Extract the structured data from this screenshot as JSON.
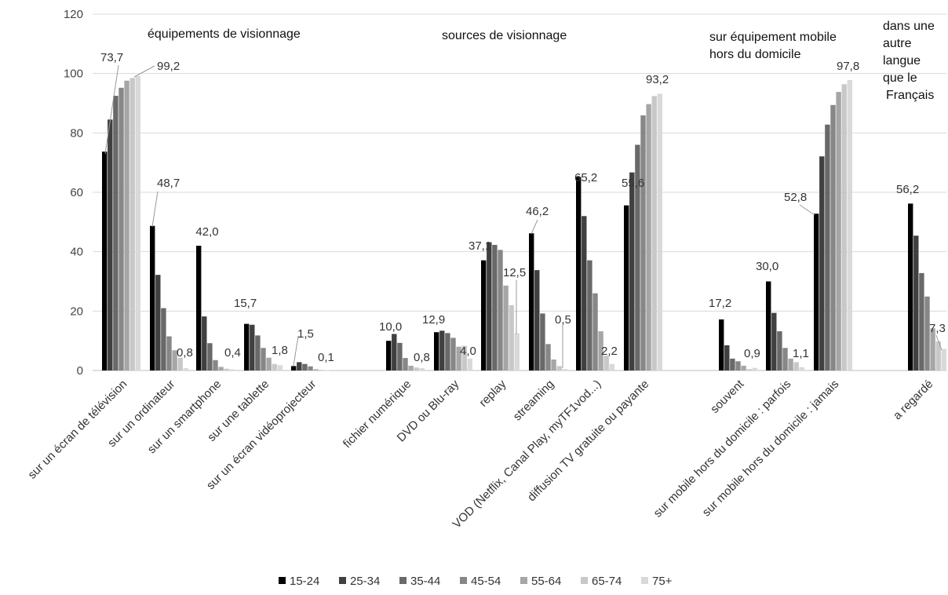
{
  "colors": {
    "series": [
      "#000000",
      "#404040",
      "#696969",
      "#878787",
      "#a6a6a6",
      "#c8c8c8",
      "#d9d9d9"
    ],
    "grid": "#d9d9d9",
    "axis": "#bfbfbf",
    "leader": "#999999"
  },
  "chart_data": {
    "type": "bar",
    "ylim": [
      0,
      120
    ],
    "yticks": [
      "0",
      "20",
      "40",
      "60",
      "80",
      "100",
      "120"
    ],
    "grid": true,
    "legend_position": "bottom",
    "categories": [
      "sur un écran de télévision",
      "sur un ordinateur",
      "sur un smartphone",
      "sur une tablette",
      "sur un écran vidéoprojecteur",
      "fichier numérique",
      "DVD ou Blu-ray",
      "replay",
      "streaming",
      "VOD (Netflix, Canal Play, myTF1vod...)",
      "diffusion TV gratuite ou payante",
      "souvent",
      "sur mobile hors du domicile : parfois",
      "sur mobile hors du domicile : jamais",
      "a regardé"
    ],
    "series": [
      {
        "name": "15-24",
        "values": [
          73.7,
          48.7,
          42.0,
          15.7,
          1.5,
          10.0,
          12.9,
          37.1,
          46.2,
          65.2,
          55.6,
          17.2,
          30.0,
          52.8,
          56.2
        ]
      },
      {
        "name": "25-34",
        "values": [
          84.5,
          32.2,
          18.2,
          15.4,
          2.8,
          12.3,
          13.4,
          43.2,
          33.8,
          52.0,
          66.7,
          8.5,
          19.4,
          72.1,
          45.4
        ]
      },
      {
        "name": "35-44",
        "values": [
          92.5,
          21.0,
          9.2,
          11.8,
          2.2,
          9.3,
          12.6,
          42.3,
          19.2,
          37.1,
          76.0,
          4.0,
          13.2,
          82.8,
          32.8
        ]
      },
      {
        "name": "45-54",
        "values": [
          95.2,
          11.5,
          3.5,
          7.6,
          1.4,
          4.2,
          11.0,
          40.6,
          8.9,
          26.0,
          85.9,
          3.1,
          7.6,
          89.4,
          24.9
        ]
      },
      {
        "name": "55-64",
        "values": [
          97.6,
          6.8,
          1.2,
          4.3,
          0.4,
          1.6,
          8.0,
          28.6,
          3.7,
          13.2,
          89.7,
          1.6,
          4.0,
          93.8,
          14.2
        ]
      },
      {
        "name": "65-74",
        "values": [
          98.5,
          4.3,
          0.6,
          2.2,
          0.2,
          1.0,
          8.3,
          22.0,
          1.5,
          5.0,
          92.4,
          0.5,
          2.8,
          96.4,
          9.8
        ]
      },
      {
        "name": "75+",
        "values": [
          99.2,
          0.8,
          0.4,
          1.8,
          0.1,
          0.8,
          4.0,
          12.5,
          0.5,
          2.2,
          93.2,
          0.9,
          1.1,
          97.8,
          7.3
        ]
      }
    ],
    "group_titles": [
      {
        "lines": [
          "équipements de visionnage"
        ]
      },
      {
        "lines": [
          "sources de visionnage"
        ]
      },
      {
        "lines": [
          "sur équipement mobile",
          "hors du domicile"
        ]
      },
      {
        "lines": [
          "dans une",
          "autre",
          "langue",
          "que le",
          "Français"
        ]
      }
    ],
    "data_labels": [
      {
        "cat": 0,
        "s": 0,
        "text": "73,7"
      },
      {
        "cat": 0,
        "s": 6,
        "text": "99,2"
      },
      {
        "cat": 1,
        "s": 0,
        "text": "48,7"
      },
      {
        "cat": 1,
        "s": 6,
        "text": "0,8"
      },
      {
        "cat": 2,
        "s": 0,
        "text": "42,0"
      },
      {
        "cat": 2,
        "s": 6,
        "text": "0,4"
      },
      {
        "cat": 3,
        "s": 0,
        "text": "15,7"
      },
      {
        "cat": 3,
        "s": 6,
        "text": "1,8"
      },
      {
        "cat": 4,
        "s": 0,
        "text": "1,5"
      },
      {
        "cat": 4,
        "s": 6,
        "text": "0,1"
      },
      {
        "cat": 5,
        "s": 0,
        "text": "10,0"
      },
      {
        "cat": 5,
        "s": 6,
        "text": "0,8"
      },
      {
        "cat": 6,
        "s": 0,
        "text": "12,9"
      },
      {
        "cat": 6,
        "s": 6,
        "text": "4,0"
      },
      {
        "cat": 7,
        "s": 0,
        "text": "37,1"
      },
      {
        "cat": 7,
        "s": 6,
        "text": "12,5"
      },
      {
        "cat": 8,
        "s": 0,
        "text": "46,2"
      },
      {
        "cat": 8,
        "s": 6,
        "text": "0,5"
      },
      {
        "cat": 9,
        "s": 0,
        "text": "65,2"
      },
      {
        "cat": 9,
        "s": 6,
        "text": "2,2"
      },
      {
        "cat": 10,
        "s": 0,
        "text": "55,6"
      },
      {
        "cat": 10,
        "s": 6,
        "text": "93,2"
      },
      {
        "cat": 11,
        "s": 0,
        "text": "17,2"
      },
      {
        "cat": 11,
        "s": 6,
        "text": "0,9"
      },
      {
        "cat": 12,
        "s": 0,
        "text": "30,0"
      },
      {
        "cat": 12,
        "s": 6,
        "text": "1,1"
      },
      {
        "cat": 13,
        "s": 0,
        "text": "52,8"
      },
      {
        "cat": 13,
        "s": 6,
        "text": "97,8"
      },
      {
        "cat": 14,
        "s": 0,
        "text": "56,2"
      },
      {
        "cat": 14,
        "s": 6,
        "text": "7,3"
      }
    ]
  }
}
